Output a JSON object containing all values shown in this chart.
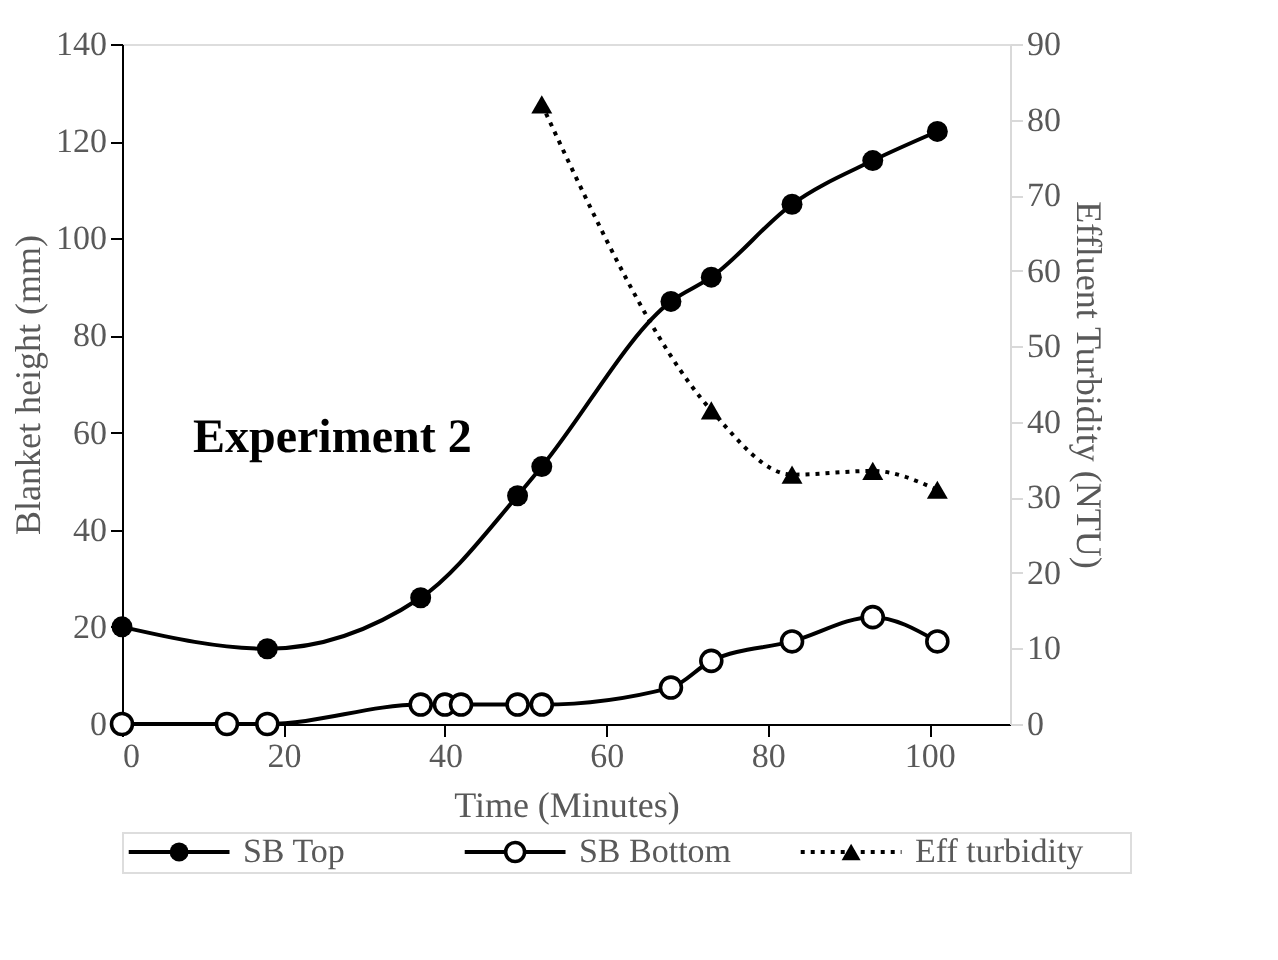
{
  "chart_data": {
    "type": "line",
    "xlabel": "Time (Minutes)",
    "ylabel": "Blanket height (mm)",
    "y2label": "Effluent Turbidity (NTU)",
    "xlim": [
      0,
      110
    ],
    "xticks": [
      0,
      20,
      40,
      60,
      80,
      100
    ],
    "ylim": [
      0,
      140
    ],
    "yticks": [
      0,
      20,
      40,
      60,
      80,
      100,
      120,
      140
    ],
    "y2lim": [
      0,
      90
    ],
    "y2ticks": [
      0,
      10,
      20,
      30,
      40,
      50,
      60,
      70,
      80,
      90
    ],
    "annotations": [
      "Experiment 2"
    ],
    "legend": "bottom",
    "grid": false,
    "series": [
      {
        "name": "SB Top",
        "color": "#000000",
        "marker": "circle",
        "line_style": "solid",
        "x": [
          0,
          18,
          37,
          49,
          52,
          68,
          73,
          83,
          93,
          101
        ],
        "values": [
          20,
          15.5,
          26,
          47,
          53,
          87,
          92,
          107,
          116,
          122
        ]
      },
      {
        "name": "SB Bottom",
        "color": "#000000",
        "marker": "circle",
        "line_style": "solid",
        "x": [
          0,
          13,
          18,
          37,
          40,
          42,
          49,
          52,
          68,
          73,
          83,
          93,
          101
        ],
        "values": [
          0,
          0,
          0,
          4,
          4,
          4,
          4,
          4,
          7.5,
          13,
          17,
          22,
          17
        ]
      },
      {
        "name": "Eff turbidity",
        "color": "#000000",
        "marker": "triangle",
        "line_style": "dotted",
        "axis": "y2",
        "x": [
          52,
          73,
          83,
          93,
          101
        ],
        "values": [
          82,
          41.5,
          33,
          33.5,
          31
        ]
      }
    ]
  }
}
